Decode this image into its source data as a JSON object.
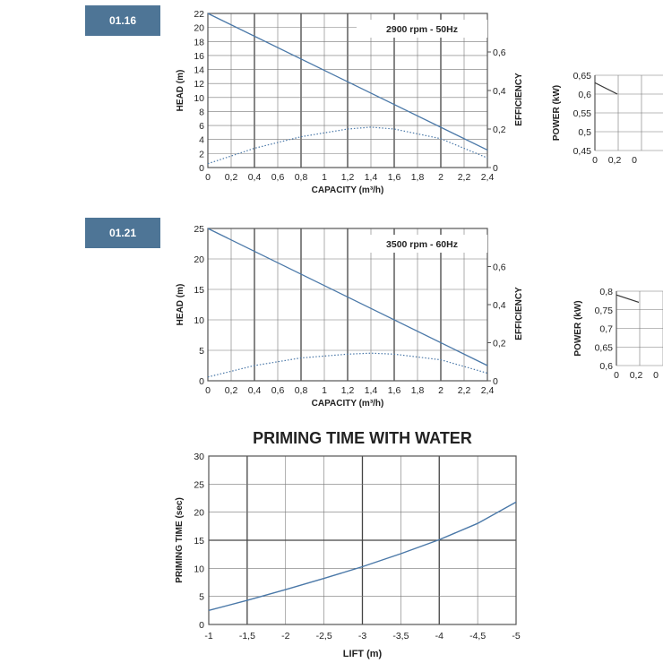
{
  "badges": [
    "01.16",
    "01.21"
  ],
  "chart_data": [
    {
      "type": "line",
      "label": "01.16",
      "annotation": "2900 rpm - 50Hz",
      "xlabel": "CAPACITY (m³/h)",
      "ylabel": "HEAD (m)",
      "y2label": "EFFICIENCY",
      "xlim": [
        0,
        2.4
      ],
      "ylim": [
        0,
        22
      ],
      "y2lim": [
        0,
        0.8
      ],
      "x_ticks": [
        "0",
        "0,2",
        "0,4",
        "0,6",
        "0,8",
        "1",
        "1,2",
        "1,4",
        "1,6",
        "1,8",
        "2",
        "2,2",
        "2,4"
      ],
      "y_ticks": [
        "0",
        "2",
        "4",
        "6",
        "8",
        "10",
        "12",
        "14",
        "16",
        "18",
        "20",
        "22"
      ],
      "y2_ticks": [
        "0",
        "0,2",
        "0,4",
        "0,6"
      ],
      "series": [
        {
          "axis": "head",
          "x": [
            0,
            2.4
          ],
          "y": [
            22,
            2.5
          ]
        },
        {
          "axis": "efficiency",
          "style": "dotted",
          "x": [
            0,
            0.4,
            0.8,
            1.2,
            1.4,
            1.6,
            2.0,
            2.4
          ],
          "y": [
            0.02,
            0.1,
            0.16,
            0.2,
            0.21,
            0.2,
            0.15,
            0.05
          ]
        }
      ]
    },
    {
      "type": "line",
      "label": "01.16",
      "xlabel": "",
      "ylabel": "POWER (kW)",
      "xlim": [
        0,
        2.4
      ],
      "ylim": [
        0.45,
        0.65
      ],
      "x_ticks": [
        "0",
        "0,2",
        "0"
      ],
      "y_ticks": [
        "0,45",
        "0,5",
        "0,55",
        "0,6",
        "0,65"
      ],
      "series": [
        {
          "axis": "power",
          "x": [
            0,
            0.3
          ],
          "y": [
            0.63,
            0.6
          ]
        }
      ]
    },
    {
      "type": "line",
      "label": "01.21",
      "annotation": "3500 rpm - 60Hz",
      "xlabel": "CAPACITY (m³/h)",
      "ylabel": "HEAD (m)",
      "y2label": "EFFICIENCY",
      "xlim": [
        0,
        2.4
      ],
      "ylim": [
        0,
        25
      ],
      "y2lim": [
        0,
        0.8
      ],
      "x_ticks": [
        "0",
        "0,2",
        "0,4",
        "0,6",
        "0,8",
        "1",
        "1,2",
        "1,4",
        "1,6",
        "1,8",
        "2",
        "2,2",
        "2,4"
      ],
      "y_ticks": [
        "0",
        "5",
        "10",
        "15",
        "20",
        "25"
      ],
      "y2_ticks": [
        "0",
        "0,2",
        "0,4",
        "0,6"
      ],
      "series": [
        {
          "axis": "head",
          "x": [
            0,
            2.4
          ],
          "y": [
            25,
            2.5
          ]
        },
        {
          "axis": "efficiency",
          "style": "dotted",
          "x": [
            0,
            0.4,
            0.8,
            1.2,
            1.4,
            1.6,
            2.0,
            2.4
          ],
          "y": [
            0.02,
            0.08,
            0.12,
            0.14,
            0.145,
            0.14,
            0.11,
            0.04
          ]
        }
      ]
    },
    {
      "type": "line",
      "label": "01.21",
      "xlabel": "",
      "ylabel": "POWER (kW)",
      "xlim": [
        0,
        2.4
      ],
      "ylim": [
        0.6,
        0.8
      ],
      "x_ticks": [
        "0",
        "0,2",
        "0"
      ],
      "y_ticks": [
        "0,6",
        "0,65",
        "0,7",
        "0,75",
        "0,8"
      ],
      "series": [
        {
          "axis": "power",
          "x": [
            0,
            0.3
          ],
          "y": [
            0.79,
            0.77
          ]
        }
      ]
    },
    {
      "type": "line",
      "title": "PRIMING TIME WITH WATER",
      "xlabel": "LIFT (m)",
      "ylabel": "PRIMING TIME (sec)",
      "xlim": [
        -1,
        -5
      ],
      "ylim": [
        0,
        30
      ],
      "x_ticks": [
        "-1",
        "-1,5",
        "-2",
        "-2,5",
        "-3",
        "-3,5",
        "-4",
        "-4,5",
        "-5"
      ],
      "y_ticks": [
        "0",
        "5",
        "10",
        "15",
        "20",
        "25",
        "30"
      ],
      "series": [
        {
          "x": [
            -1,
            -1.5,
            -2,
            -2.5,
            -3,
            -3.5,
            -4,
            -4.5,
            -5
          ],
          "y": [
            2.5,
            4.3,
            6.2,
            8.2,
            10.3,
            12.6,
            15.1,
            18,
            21.8
          ]
        }
      ]
    }
  ]
}
